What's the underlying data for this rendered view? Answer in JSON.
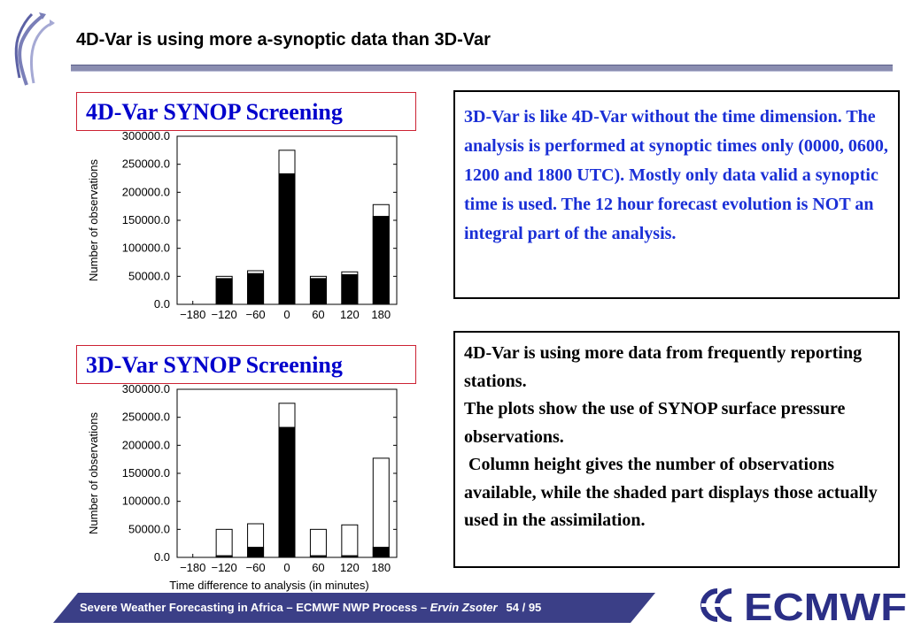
{
  "title": "4D-Var is using more a-synoptic data than 3D-Var",
  "panels": {
    "top_label": "4D-Var SYNOP Screening",
    "bottom_label": "3D-Var SYNOP Screening"
  },
  "text_boxes": {
    "box1": "3D-Var is like 4D-Var without the time dimension. The analysis is performed at synoptic times only (0000, 0600, 1200 and 1800 UTC). Mostly only data valid a synoptic time is used.  The 12 hour forecast evolution is NOT an integral part of the analysis.",
    "box2": [
      "4D-Var is using more data from frequently reporting stations.",
      "The plots show the use of SYNOP surface pressure observations.",
      " Column height gives the number of observations available, while the shaded part displays those actually used in the assimilation."
    ]
  },
  "footer": {
    "left": "Severe Weather Forecasting in Africa – ECMWF NWP Process – ",
    "author": "Ervin Zsoter",
    "page": "54 / 95"
  },
  "logo_text": "ECMWF",
  "colors": {
    "title_rule": "#8a8db0",
    "panel_label_text": "#0000cc",
    "panel_label_border": "#cc2233",
    "box1_text": "#1a2fd6",
    "footer_bar": "#3b3f87",
    "logo": "#2b2f86"
  },
  "chart_data": [
    {
      "type": "bar",
      "title": "",
      "xlabel": "",
      "ylabel": "Number of observations",
      "ylim": [
        0,
        300000
      ],
      "yticks": [
        "0.0",
        "50000.0",
        "100000.0",
        "150000.0",
        "200000.0",
        "250000.0",
        "300000.0"
      ],
      "xticks": [
        "−180",
        "−120",
        "−60",
        "0",
        "60",
        "120",
        "180"
      ],
      "categories": [
        -120,
        -60,
        0,
        60,
        120,
        180
      ],
      "series": [
        {
          "name": "",
          "values": [
            50000,
            60000,
            275000,
            50000,
            58000,
            178000
          ]
        },
        {
          "name": "",
          "values": [
            46000,
            55000,
            233000,
            46000,
            53000,
            157000
          ]
        }
      ]
    },
    {
      "type": "bar",
      "title": "",
      "xlabel": "Time difference to analysis (in minutes)",
      "ylabel": "Number of observations",
      "ylim": [
        0,
        300000
      ],
      "yticks": [
        "0.0",
        "50000.0",
        "100000.0",
        "150000.0",
        "200000.0",
        "250000.0",
        "300000.0"
      ],
      "xticks": [
        "−180",
        "−120",
        "−60",
        "0",
        "60",
        "120",
        "180"
      ],
      "categories": [
        -120,
        -60,
        0,
        60,
        120,
        180
      ],
      "series": [
        {
          "name": "",
          "values": [
            50000,
            60000,
            275000,
            50000,
            58000,
            177000
          ]
        },
        {
          "name": "",
          "values": [
            3000,
            18000,
            232000,
            3000,
            3000,
            18000
          ]
        }
      ]
    }
  ]
}
